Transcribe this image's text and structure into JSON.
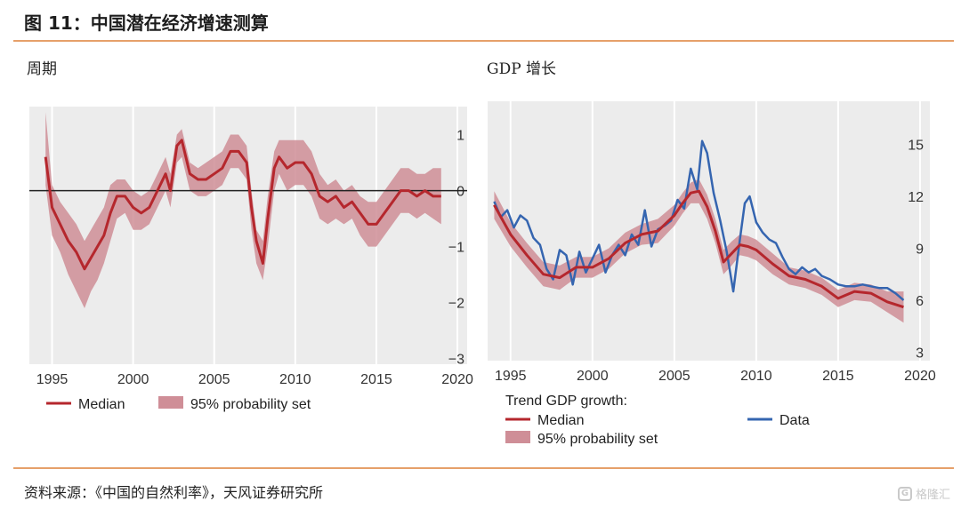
{
  "figure": {
    "title": "图 11：中国潜在经济增速测算",
    "source": "资料来源：《中国的自然利率》，天风证券研究所",
    "watermark": "格隆汇",
    "watermark_logo": "G"
  },
  "colors": {
    "plot_bg": "#ececec",
    "median": "#b5272d",
    "band": "#cf8e97",
    "data": "#3565b0",
    "rule": "#e6a06a"
  },
  "chart_data": [
    {
      "type": "line",
      "title": "周期",
      "x_ticks": [
        1995,
        2000,
        2005,
        2010,
        2015,
        2020
      ],
      "y_ticks": [
        1,
        0,
        -1,
        -2,
        -3
      ],
      "y_tick_labels": [
        "1",
        "0",
        "−1",
        "−2",
        "−3"
      ],
      "ylim": [
        -3.1,
        1.5
      ],
      "xlim": [
        1993.6,
        2020.6
      ],
      "zero_line": true,
      "grid": "vertical",
      "legend": {
        "position": "bottom",
        "items": [
          {
            "label": "Median",
            "kind": "line"
          },
          {
            "label": "95% probability set",
            "kind": "band"
          }
        ]
      },
      "series": [
        {
          "name": "Median",
          "kind": "line",
          "x": [
            1994.6,
            1995.0,
            1995.5,
            1996.0,
            1996.5,
            1997.0,
            1997.4,
            1997.8,
            1998.2,
            1998.6,
            1999.0,
            1999.5,
            2000.0,
            2000.5,
            2001.0,
            2001.5,
            2002.0,
            2002.3,
            2002.7,
            2003.0,
            2003.5,
            2004.0,
            2004.5,
            2005.0,
            2005.5,
            2006.0,
            2006.5,
            2007.0,
            2007.3,
            2007.6,
            2008.0,
            2008.3,
            2008.7,
            2009.0,
            2009.5,
            2010.0,
            2010.5,
            2011.0,
            2011.5,
            2012.0,
            2012.5,
            2013.0,
            2013.5,
            2014.0,
            2014.5,
            2015.0,
            2015.5,
            2016.0,
            2016.5,
            2017.0,
            2017.5,
            2018.0,
            2018.5,
            2019.0
          ],
          "y": [
            0.6,
            -0.3,
            -0.6,
            -0.9,
            -1.1,
            -1.4,
            -1.2,
            -1.0,
            -0.8,
            -0.4,
            -0.1,
            -0.1,
            -0.3,
            -0.4,
            -0.3,
            0.0,
            0.3,
            0.0,
            0.8,
            0.9,
            0.3,
            0.2,
            0.2,
            0.3,
            0.4,
            0.7,
            0.7,
            0.5,
            -0.3,
            -0.9,
            -1.3,
            -0.5,
            0.4,
            0.6,
            0.4,
            0.5,
            0.5,
            0.3,
            -0.1,
            -0.2,
            -0.1,
            -0.3,
            -0.2,
            -0.4,
            -0.6,
            -0.6,
            -0.4,
            -0.2,
            0.0,
            0.0,
            -0.1,
            0.0,
            -0.1,
            -0.1
          ]
        },
        {
          "name": "95% probability set",
          "kind": "band",
          "x": [
            1994.6,
            1995.0,
            1995.5,
            1996.0,
            1996.5,
            1997.0,
            1997.4,
            1997.8,
            1998.2,
            1998.6,
            1999.0,
            1999.5,
            2000.0,
            2000.5,
            2001.0,
            2001.5,
            2002.0,
            2002.3,
            2002.7,
            2003.0,
            2003.5,
            2004.0,
            2004.5,
            2005.0,
            2005.5,
            2006.0,
            2006.5,
            2007.0,
            2007.3,
            2007.6,
            2008.0,
            2008.3,
            2008.7,
            2009.0,
            2009.5,
            2010.0,
            2010.5,
            2011.0,
            2011.5,
            2012.0,
            2012.5,
            2013.0,
            2013.5,
            2014.0,
            2014.5,
            2015.0,
            2015.5,
            2016.0,
            2016.5,
            2017.0,
            2017.5,
            2018.0,
            2018.5,
            2019.0
          ],
          "upper": [
            1.4,
            0.1,
            -0.2,
            -0.4,
            -0.6,
            -0.9,
            -0.7,
            -0.5,
            -0.3,
            0.1,
            0.2,
            0.2,
            0.0,
            -0.1,
            0.0,
            0.3,
            0.6,
            0.3,
            1.0,
            1.1,
            0.5,
            0.4,
            0.5,
            0.6,
            0.7,
            1.0,
            1.0,
            0.8,
            0.0,
            -0.7,
            -0.9,
            -0.1,
            0.7,
            0.9,
            0.9,
            0.9,
            0.9,
            0.7,
            0.3,
            0.1,
            0.2,
            0.0,
            0.1,
            -0.1,
            -0.2,
            -0.2,
            0.0,
            0.2,
            0.4,
            0.4,
            0.3,
            0.3,
            0.4,
            0.4
          ],
          "lower": [
            0.1,
            -0.8,
            -1.1,
            -1.5,
            -1.8,
            -2.1,
            -1.8,
            -1.6,
            -1.3,
            -0.9,
            -0.5,
            -0.4,
            -0.7,
            -0.7,
            -0.6,
            -0.3,
            0.0,
            -0.3,
            0.5,
            0.6,
            0.0,
            -0.1,
            -0.1,
            0.0,
            0.1,
            0.4,
            0.4,
            0.2,
            -0.7,
            -1.3,
            -1.6,
            -1.0,
            0.0,
            0.3,
            0.0,
            0.1,
            0.1,
            -0.1,
            -0.5,
            -0.6,
            -0.5,
            -0.6,
            -0.5,
            -0.8,
            -1.0,
            -1.0,
            -0.8,
            -0.6,
            -0.4,
            -0.4,
            -0.5,
            -0.4,
            -0.5,
            -0.6
          ]
        }
      ]
    },
    {
      "type": "line",
      "title": "GDP 增长",
      "x_ticks": [
        1995,
        2000,
        2005,
        2010,
        2015,
        2020
      ],
      "y_ticks": [
        15,
        12,
        9,
        6,
        3
      ],
      "y_tick_labels": [
        "15",
        "12",
        "9",
        "6",
        "3"
      ],
      "ylim": [
        2.5,
        17.5
      ],
      "xlim": [
        1993.6,
        2020.6
      ],
      "grid": "vertical",
      "legend": {
        "position": "bottom",
        "title": "Trend GDP growth:",
        "items": [
          {
            "label": "Median",
            "kind": "line"
          },
          {
            "label": "Data",
            "kind": "line"
          },
          {
            "label": "95% probability set",
            "kind": "band"
          }
        ]
      },
      "series": [
        {
          "name": "Median",
          "kind": "line",
          "x": [
            1994.0,
            1995.0,
            1996.0,
            1997.0,
            1998.0,
            1999.0,
            2000.0,
            2001.0,
            2002.0,
            2003.0,
            2004.0,
            2005.0,
            2005.5,
            2006.0,
            2006.5,
            2007.0,
            2007.5,
            2008.0,
            2008.5,
            2009.0,
            2009.5,
            2010.0,
            2011.0,
            2012.0,
            2013.0,
            2014.0,
            2015.0,
            2016.0,
            2017.0,
            2018.0,
            2019.0
          ],
          "y": [
            11.5,
            9.8,
            8.6,
            7.5,
            7.3,
            7.9,
            7.9,
            8.4,
            9.3,
            9.8,
            10.0,
            10.9,
            11.6,
            12.2,
            12.3,
            11.4,
            10.0,
            8.2,
            8.7,
            9.2,
            9.1,
            8.9,
            8.1,
            7.4,
            7.2,
            6.8,
            6.1,
            6.5,
            6.4,
            5.9,
            5.6
          ]
        },
        {
          "name": "95% probability set",
          "kind": "band",
          "x": [
            1994.0,
            1995.0,
            1996.0,
            1997.0,
            1998.0,
            1999.0,
            2000.0,
            2001.0,
            2002.0,
            2003.0,
            2004.0,
            2005.0,
            2005.5,
            2006.0,
            2006.5,
            2007.0,
            2007.5,
            2008.0,
            2008.5,
            2009.0,
            2009.5,
            2010.0,
            2011.0,
            2012.0,
            2013.0,
            2014.0,
            2015.0,
            2016.0,
            2017.0,
            2018.0,
            2019.0
          ],
          "upper": [
            12.3,
            10.5,
            9.3,
            8.2,
            8.0,
            8.5,
            8.5,
            9.0,
            9.9,
            10.4,
            10.7,
            11.5,
            12.2,
            12.8,
            13.0,
            12.1,
            10.7,
            8.9,
            9.4,
            9.8,
            9.7,
            9.5,
            8.7,
            7.9,
            7.7,
            7.3,
            6.6,
            7.0,
            6.9,
            6.5,
            6.5
          ],
          "lower": [
            10.7,
            9.1,
            7.9,
            6.8,
            6.6,
            7.3,
            7.3,
            7.8,
            8.7,
            9.2,
            9.3,
            10.3,
            11.0,
            11.6,
            11.6,
            10.7,
            9.3,
            7.5,
            8.0,
            8.6,
            8.5,
            8.3,
            7.5,
            6.9,
            6.7,
            6.3,
            5.6,
            6.0,
            5.9,
            5.3,
            4.7
          ]
        },
        {
          "name": "Data",
          "kind": "line",
          "x": [
            1994.0,
            1994.4,
            1994.8,
            1995.2,
            1995.6,
            1996.0,
            1996.4,
            1996.8,
            1997.2,
            1997.6,
            1998.0,
            1998.4,
            1998.8,
            1999.2,
            1999.6,
            2000.0,
            2000.4,
            2000.8,
            2001.2,
            2001.6,
            2002.0,
            2002.4,
            2002.8,
            2003.2,
            2003.6,
            2004.0,
            2004.4,
            2004.8,
            2005.2,
            2005.6,
            2006.0,
            2006.4,
            2006.7,
            2007.0,
            2007.4,
            2007.8,
            2008.2,
            2008.6,
            2009.0,
            2009.3,
            2009.6,
            2010.0,
            2010.4,
            2010.8,
            2011.2,
            2011.6,
            2012.0,
            2012.4,
            2012.8,
            2013.2,
            2013.6,
            2014.0,
            2014.5,
            2015.0,
            2015.5,
            2016.0,
            2016.5,
            2017.0,
            2017.5,
            2018.0,
            2018.5,
            2019.0
          ],
          "y": [
            11.7,
            10.8,
            11.2,
            10.2,
            10.9,
            10.6,
            9.6,
            9.2,
            7.8,
            7.2,
            8.9,
            8.6,
            6.9,
            8.8,
            7.6,
            8.4,
            9.2,
            7.6,
            8.6,
            9.2,
            8.6,
            9.8,
            9.2,
            11.2,
            9.1,
            10.1,
            10.3,
            10.6,
            11.8,
            11.3,
            13.6,
            12.4,
            15.2,
            14.5,
            12.2,
            10.6,
            8.8,
            6.5,
            9.5,
            11.6,
            12.0,
            10.5,
            9.9,
            9.5,
            9.3,
            8.5,
            7.8,
            7.5,
            7.9,
            7.6,
            7.8,
            7.4,
            7.2,
            6.9,
            6.8,
            6.8,
            6.9,
            6.8,
            6.7,
            6.7,
            6.4,
            6.0
          ]
        }
      ]
    }
  ]
}
